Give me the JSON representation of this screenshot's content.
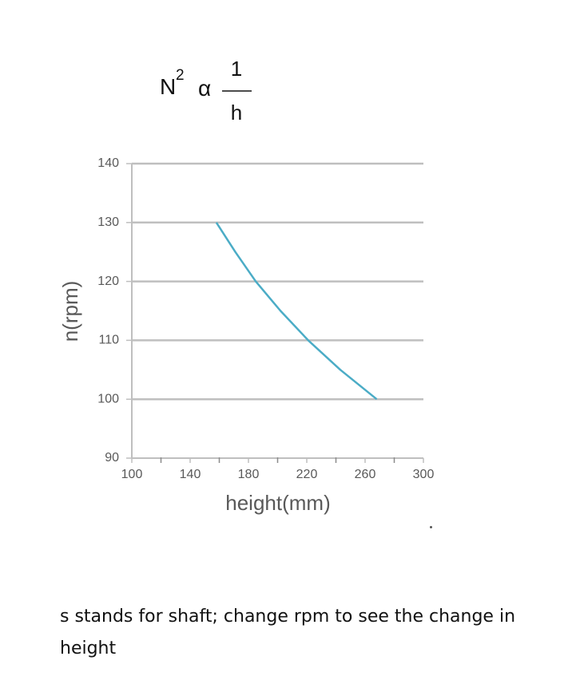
{
  "formula": {
    "base": "N",
    "exponent": "2",
    "relation": "α",
    "numerator": "1",
    "denominator": "h"
  },
  "chart_data": {
    "type": "line",
    "xlabel": "height(mm)",
    "ylabel": "n(rpm)",
    "x": [
      158,
      171,
      185,
      202,
      221,
      243,
      268
    ],
    "values": [
      130,
      125,
      120,
      115,
      110,
      105,
      100
    ],
    "color": "#4bacc6",
    "xlim": [
      100,
      300
    ],
    "xticks": [
      100,
      140,
      180,
      220,
      260,
      300
    ],
    "x_minor_ticks": [
      120,
      160,
      200,
      240,
      280
    ],
    "ylim": [
      90,
      140
    ],
    "yticks": [
      90,
      100,
      110,
      120,
      130,
      140
    ],
    "grid": true
  },
  "caption": "s stands for shaft; change rpm to see the change in height"
}
